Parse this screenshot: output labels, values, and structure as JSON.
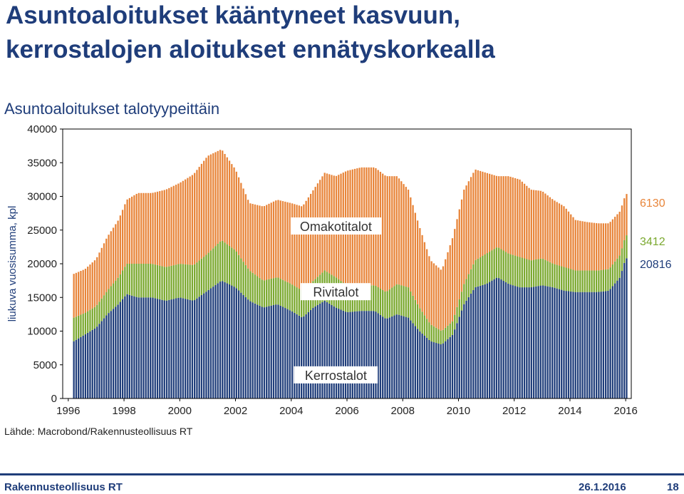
{
  "header": {
    "title_line1": "Asuntoaloitukset kääntyneet kasvuun,",
    "title_line2": "kerrostalojen aloitukset ennätyskorkealla",
    "subtitle": "Asuntoaloitukset talotyypeittäin"
  },
  "colors": {
    "kerrostalot": "#1f3d7a",
    "rivitalot": "#7aa82e",
    "omakotitalot": "#e8853a",
    "title": "#1f3d7a"
  },
  "chart_data": {
    "type": "bar",
    "stacked": true,
    "title": "Asuntoaloitukset talotyypeittäin",
    "ylabel": "liukuva vuosisumma, kpl",
    "xlabel": "",
    "ylim": [
      0,
      40000
    ],
    "yticks": [
      0,
      5000,
      10000,
      15000,
      20000,
      25000,
      30000,
      35000,
      40000
    ],
    "xticks": [
      "1996",
      "1998",
      "2000",
      "2002",
      "2004",
      "2006",
      "2008",
      "2010",
      "2012",
      "2014",
      "2016"
    ],
    "x_range": [
      1995.8,
      2016.2
    ],
    "grid": false,
    "series": [
      {
        "name": "Kerrostalot",
        "color": "#1f3d7a",
        "points": [
          [
            1996.2,
            8500
          ],
          [
            1996.6,
            9500
          ],
          [
            1997.0,
            10500
          ],
          [
            1997.4,
            12500
          ],
          [
            1997.8,
            14000
          ],
          [
            1998.1,
            15500
          ],
          [
            1998.5,
            15000
          ],
          [
            1999.0,
            15000
          ],
          [
            1999.5,
            14500
          ],
          [
            2000.0,
            15000
          ],
          [
            2000.5,
            14500
          ],
          [
            2001.0,
            16000
          ],
          [
            2001.5,
            17500
          ],
          [
            2002.0,
            16500
          ],
          [
            2002.5,
            14500
          ],
          [
            2003.0,
            13500
          ],
          [
            2003.5,
            14000
          ],
          [
            2004.0,
            13000
          ],
          [
            2004.4,
            12000
          ],
          [
            2004.8,
            13500
          ],
          [
            2005.2,
            14500
          ],
          [
            2005.6,
            13500
          ],
          [
            2006.0,
            12800
          ],
          [
            2006.5,
            13000
          ],
          [
            2007.0,
            13000
          ],
          [
            2007.4,
            11800
          ],
          [
            2007.8,
            12500
          ],
          [
            2008.2,
            12000
          ],
          [
            2008.6,
            10000
          ],
          [
            2009.0,
            8500
          ],
          [
            2009.4,
            8000
          ],
          [
            2009.8,
            9500
          ],
          [
            2010.2,
            14000
          ],
          [
            2010.6,
            16500
          ],
          [
            2011.0,
            17000
          ],
          [
            2011.4,
            18000
          ],
          [
            2011.8,
            17000
          ],
          [
            2012.2,
            16500
          ],
          [
            2012.6,
            16500
          ],
          [
            2013.0,
            16800
          ],
          [
            2013.4,
            16500
          ],
          [
            2013.8,
            16000
          ],
          [
            2014.2,
            15800
          ],
          [
            2014.6,
            15800
          ],
          [
            2015.0,
            15800
          ],
          [
            2015.4,
            16000
          ],
          [
            2015.8,
            18000
          ],
          [
            2016.0,
            20816
          ]
        ]
      },
      {
        "name": "Rivitalot",
        "color": "#7aa82e",
        "points": [
          [
            1996.2,
            3500
          ],
          [
            1996.6,
            3200
          ],
          [
            1997.0,
            3200
          ],
          [
            1997.4,
            3500
          ],
          [
            1997.8,
            4000
          ],
          [
            1998.1,
            4500
          ],
          [
            1998.5,
            5000
          ],
          [
            1999.0,
            5000
          ],
          [
            1999.5,
            5000
          ],
          [
            2000.0,
            5000
          ],
          [
            2000.5,
            5300
          ],
          [
            2001.0,
            5500
          ],
          [
            2001.5,
            6000
          ],
          [
            2002.0,
            5500
          ],
          [
            2002.5,
            4500
          ],
          [
            2003.0,
            4000
          ],
          [
            2003.5,
            4000
          ],
          [
            2004.0,
            4000
          ],
          [
            2004.4,
            4000
          ],
          [
            2004.8,
            4000
          ],
          [
            2005.2,
            4500
          ],
          [
            2005.6,
            4500
          ],
          [
            2006.0,
            4000
          ],
          [
            2006.5,
            3800
          ],
          [
            2007.0,
            3800
          ],
          [
            2007.4,
            4000
          ],
          [
            2007.8,
            4500
          ],
          [
            2008.2,
            4500
          ],
          [
            2008.6,
            3500
          ],
          [
            2009.0,
            2500
          ],
          [
            2009.4,
            2000
          ],
          [
            2009.8,
            2000
          ],
          [
            2010.2,
            3000
          ],
          [
            2010.6,
            4000
          ],
          [
            2011.0,
            4500
          ],
          [
            2011.4,
            4500
          ],
          [
            2011.8,
            4500
          ],
          [
            2012.2,
            4500
          ],
          [
            2012.6,
            4000
          ],
          [
            2013.0,
            4000
          ],
          [
            2013.4,
            3500
          ],
          [
            2013.8,
            3500
          ],
          [
            2014.2,
            3200
          ],
          [
            2014.6,
            3200
          ],
          [
            2015.0,
            3200
          ],
          [
            2015.4,
            3200
          ],
          [
            2015.8,
            3300
          ],
          [
            2016.0,
            3412
          ]
        ]
      },
      {
        "name": "Omakotitalot",
        "color": "#e8853a",
        "points": [
          [
            1996.2,
            6500
          ],
          [
            1996.6,
            6500
          ],
          [
            1997.0,
            7000
          ],
          [
            1997.4,
            8000
          ],
          [
            1997.8,
            8500
          ],
          [
            1998.1,
            9500
          ],
          [
            1998.5,
            10500
          ],
          [
            1999.0,
            10500
          ],
          [
            1999.5,
            11500
          ],
          [
            2000.0,
            12000
          ],
          [
            2000.5,
            13500
          ],
          [
            2001.0,
            14500
          ],
          [
            2001.5,
            13500
          ],
          [
            2002.0,
            12000
          ],
          [
            2002.5,
            10000
          ],
          [
            2003.0,
            11000
          ],
          [
            2003.5,
            11500
          ],
          [
            2004.0,
            12000
          ],
          [
            2004.4,
            12500
          ],
          [
            2004.8,
            13500
          ],
          [
            2005.2,
            14500
          ],
          [
            2005.6,
            15000
          ],
          [
            2006.0,
            17000
          ],
          [
            2006.5,
            17500
          ],
          [
            2007.0,
            17500
          ],
          [
            2007.4,
            17200
          ],
          [
            2007.8,
            16000
          ],
          [
            2008.2,
            14500
          ],
          [
            2008.6,
            12000
          ],
          [
            2009.0,
            9500
          ],
          [
            2009.4,
            9000
          ],
          [
            2009.8,
            12500
          ],
          [
            2010.2,
            14000
          ],
          [
            2010.6,
            13500
          ],
          [
            2011.0,
            12000
          ],
          [
            2011.4,
            10500
          ],
          [
            2011.8,
            11500
          ],
          [
            2012.2,
            11500
          ],
          [
            2012.6,
            10500
          ],
          [
            2013.0,
            10000
          ],
          [
            2013.4,
            9500
          ],
          [
            2013.8,
            9000
          ],
          [
            2014.2,
            7500
          ],
          [
            2014.6,
            7200
          ],
          [
            2015.0,
            7000
          ],
          [
            2015.4,
            6800
          ],
          [
            2015.8,
            6500
          ],
          [
            2016.0,
            6130
          ]
        ]
      }
    ],
    "series_labels": [
      "Omakotitalot",
      "Rivitalot",
      "Kerrostalot"
    ],
    "end_labels": [
      {
        "series": "Omakotitalot",
        "text": "6130",
        "color": "#e8853a"
      },
      {
        "series": "Rivitalot",
        "text": "3412",
        "color": "#7aa82e"
      },
      {
        "series": "Kerrostalot",
        "text": "20816",
        "color": "#1f3d7a"
      }
    ]
  },
  "source": "Lähde: Macrobond/Rakennusteollisuus RT",
  "footer": {
    "org": "Rakennusteollisuus RT",
    "date": "26.1.2016",
    "page": "18"
  }
}
